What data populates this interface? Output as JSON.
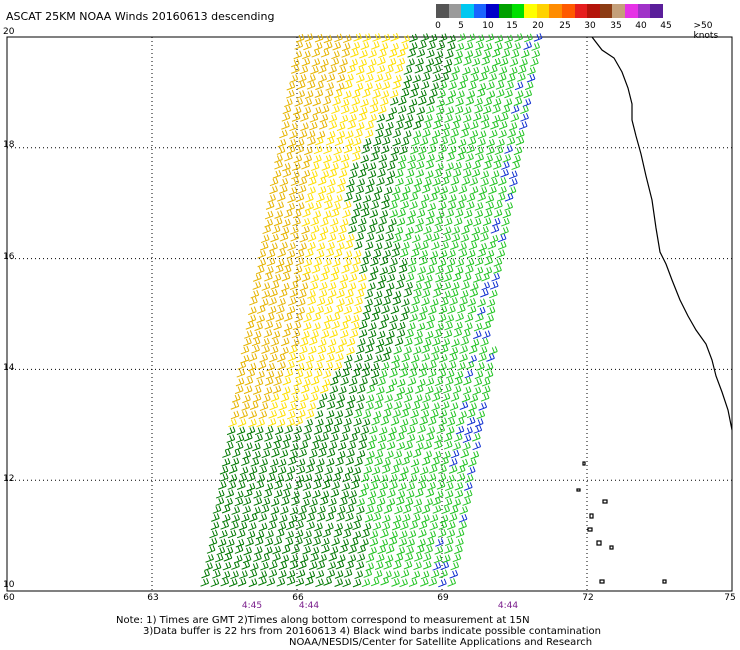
{
  "title": "ASCAT 25KM NOAA Winds 20160613 descending",
  "colorbar": {
    "swatches": [
      "#555555",
      "#9a9a9a",
      "#00c8f0",
      "#1a64ff",
      "#0000c8",
      "#00a000",
      "#00e000",
      "#ffff00",
      "#ffd200",
      "#ff8c00",
      "#ff5a00",
      "#e61e1e",
      "#b4140a",
      "#8c3c14",
      "#c4a07a",
      "#e632e6",
      "#a032c8",
      "#5a1e9a"
    ],
    "labels": [
      "0",
      "5",
      "10",
      "15",
      "20",
      "25",
      "30",
      "35",
      "40",
      "45",
      ">50 knots"
    ]
  },
  "lat_labels": [
    "20",
    "18",
    "16",
    "14",
    "12",
    "10"
  ],
  "lon_labels": [
    "60",
    "63",
    "66",
    "69",
    "72",
    "75"
  ],
  "times": [
    "4:45",
    "4:44",
    "4:44"
  ],
  "notes": [
    "Note: 1) Times are GMT 2)Times along bottom correspond to measurement at 15N",
    "3)Data buffer is 22 hrs from 20160613 4) Black wind barbs indicate possible contamination",
    "NOAA/NESDIS/Center for Satellite Applications and Research"
  ],
  "map": {
    "lat_range": [
      10,
      20
    ],
    "lon_range": [
      60,
      75
    ],
    "grid": "dotted"
  }
}
